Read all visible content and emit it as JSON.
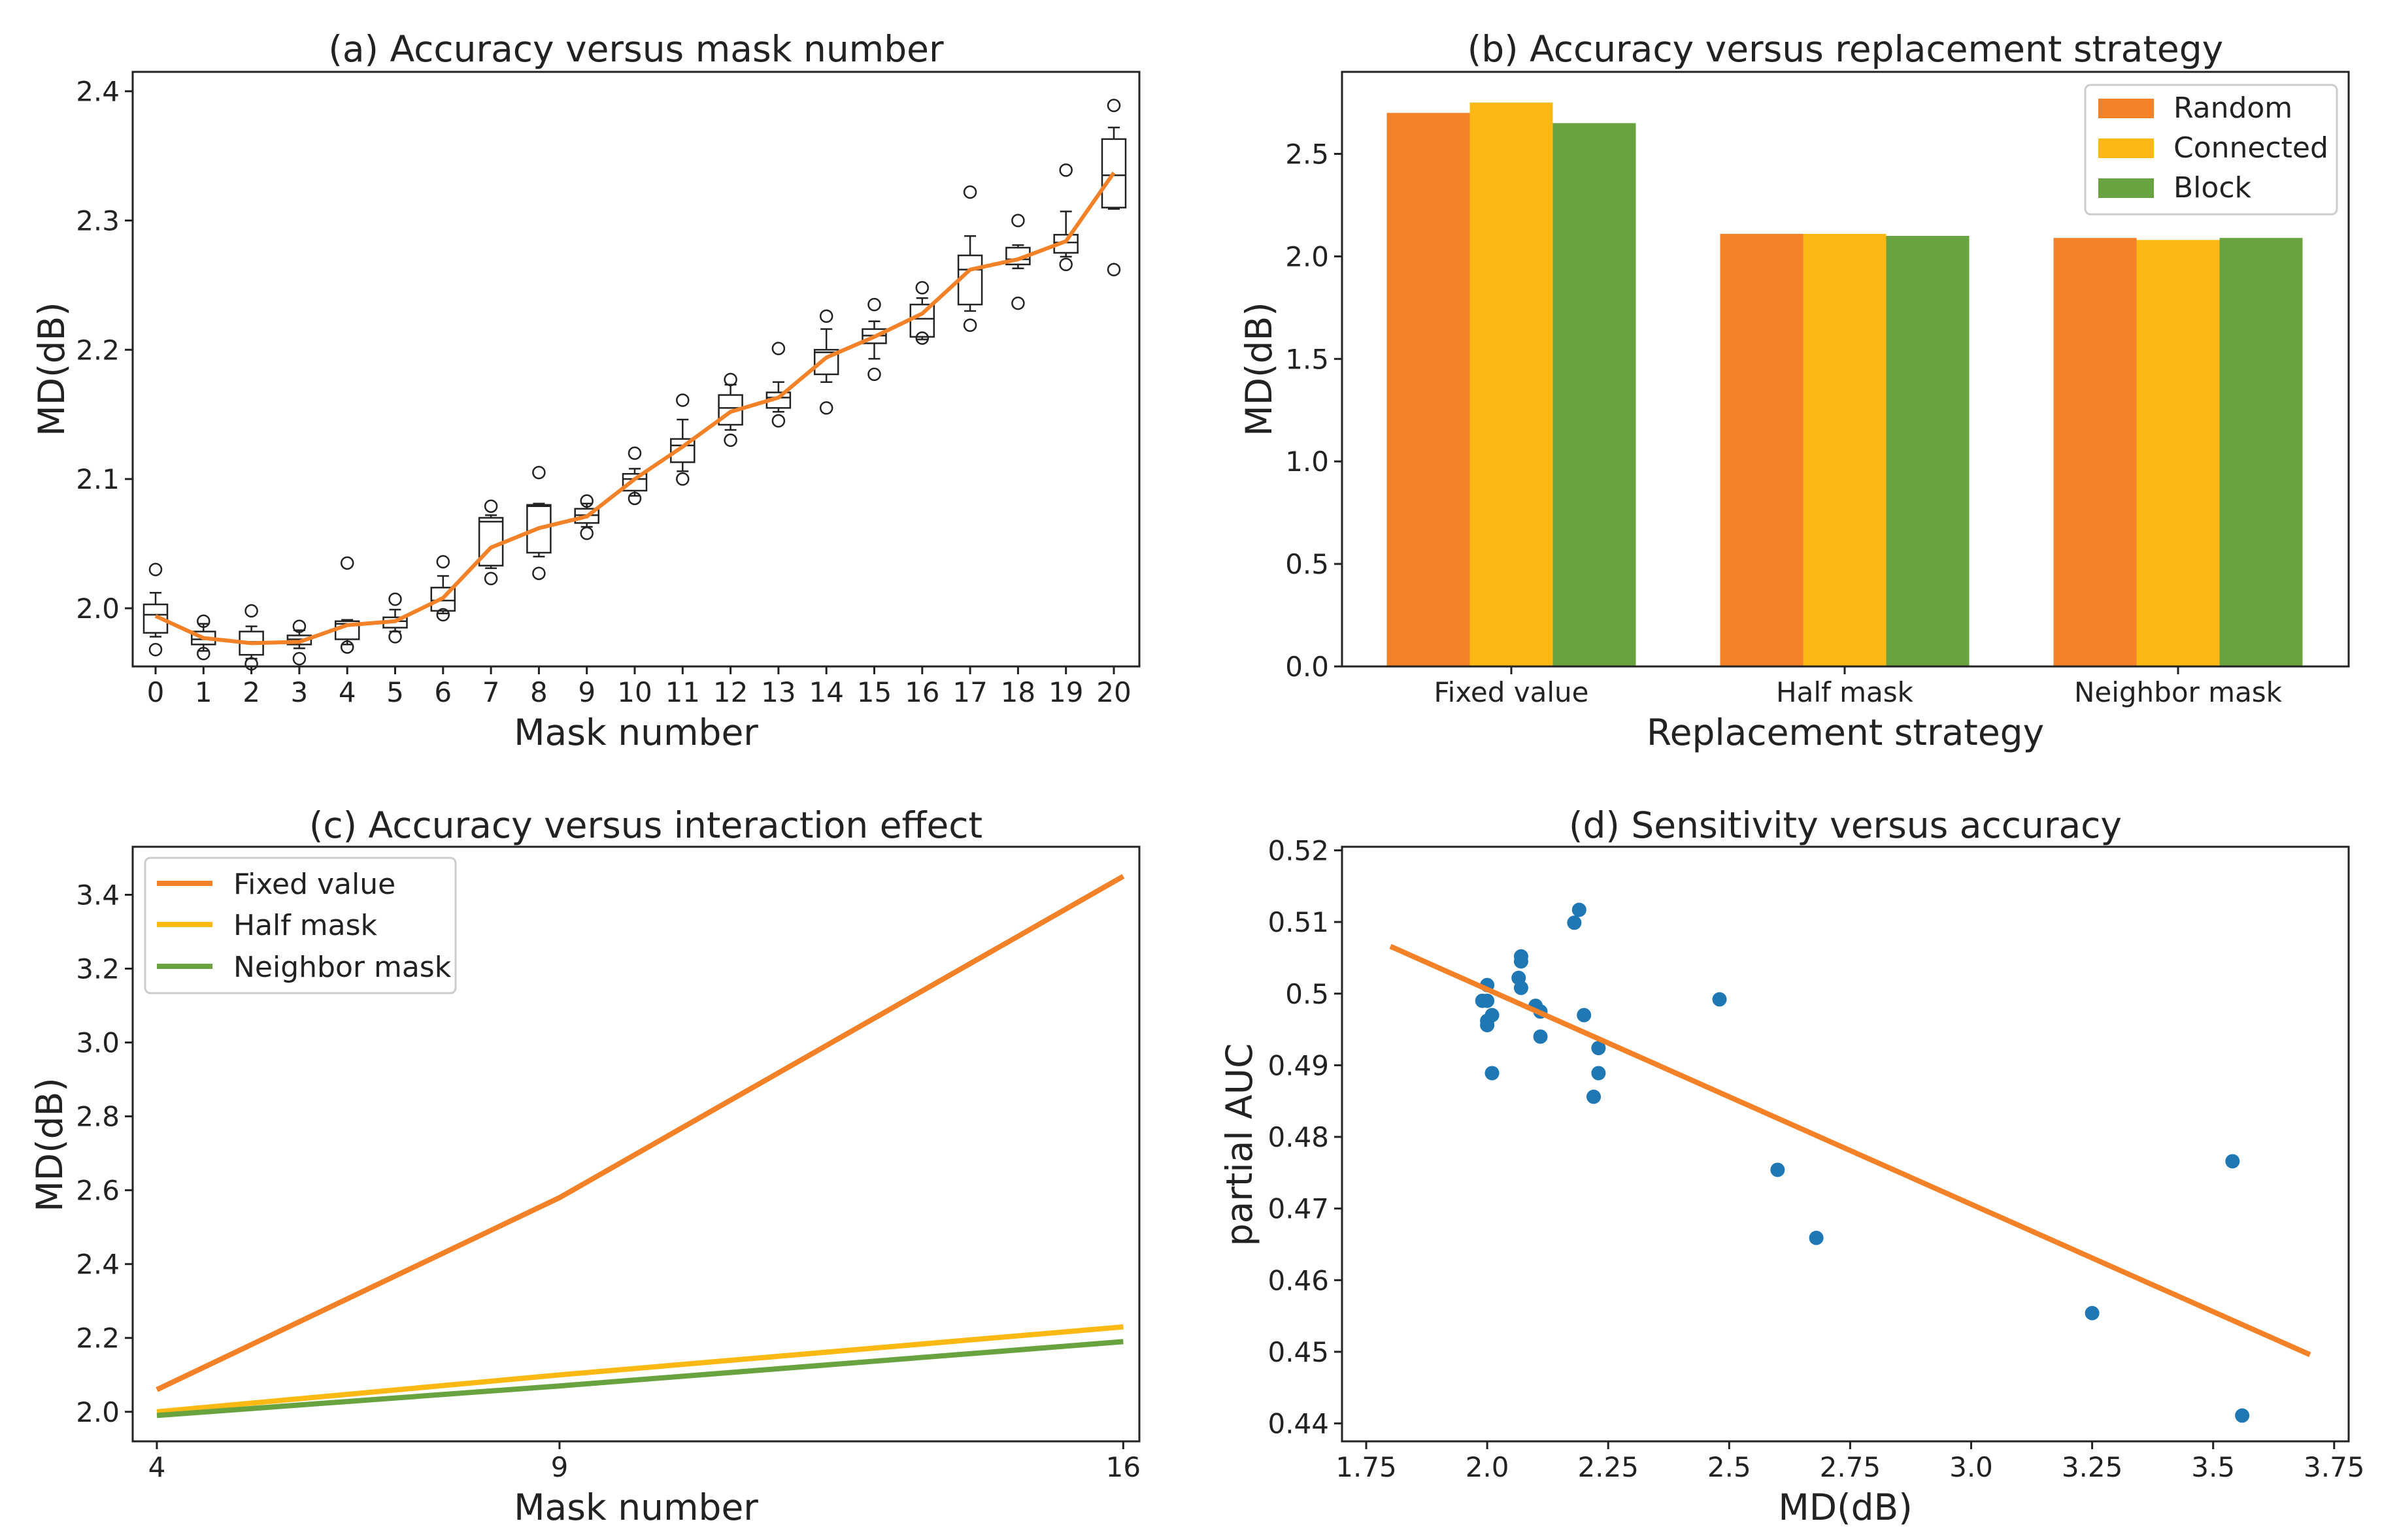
{
  "colors": {
    "orange": "#f28128",
    "yellow": "#fdb913",
    "green": "#68a33f",
    "blue": "#1f77b4",
    "frame": "#222222"
  },
  "chart_data": [
    {
      "id": "a",
      "type": "box",
      "title": "(a) Accuracy versus mask number",
      "xlabel": "Mask number",
      "ylabel": "MD(dB)",
      "ylim": [
        1.955,
        2.415
      ],
      "yticks": [
        2.0,
        2.1,
        2.2,
        2.3,
        2.4
      ],
      "ytick_labels": [
        "2.0",
        "2.1",
        "2.2",
        "2.3",
        "2.4"
      ],
      "categories": [
        "0",
        "1",
        "2",
        "3",
        "4",
        "5",
        "6",
        "7",
        "8",
        "9",
        "10",
        "11",
        "12",
        "13",
        "14",
        "15",
        "16",
        "17",
        "18",
        "19",
        "20"
      ],
      "mean_line": [
        1.994,
        1.977,
        1.973,
        1.974,
        1.987,
        1.99,
        2.008,
        2.047,
        2.062,
        2.071,
        2.1,
        2.125,
        2.152,
        2.163,
        2.194,
        2.21,
        2.228,
        2.262,
        2.27,
        2.284,
        2.337
      ],
      "boxes": [
        {
          "q1": 1.981,
          "median": 1.995,
          "q3": 2.003,
          "wlo": 1.978,
          "whi": 2.012,
          "outliers": [
            1.968,
            2.03
          ]
        },
        {
          "q1": 1.972,
          "median": 1.976,
          "q3": 1.982,
          "wlo": 1.967,
          "whi": 1.988,
          "outliers": [
            1.965,
            1.99
          ]
        },
        {
          "q1": 1.964,
          "median": 1.974,
          "q3": 1.982,
          "wlo": 1.961,
          "whi": 1.986,
          "outliers": [
            1.957,
            1.998
          ]
        },
        {
          "q1": 1.972,
          "median": 1.976,
          "q3": 1.979,
          "wlo": 1.969,
          "whi": 1.983,
          "outliers": [
            1.961,
            1.986
          ]
        },
        {
          "q1": 1.976,
          "median": 1.988,
          "q3": 1.99,
          "wlo": 1.972,
          "whi": 1.991,
          "outliers": [
            1.97,
            2.035
          ]
        },
        {
          "q1": 1.985,
          "median": 1.99,
          "q3": 1.993,
          "wlo": 1.982,
          "whi": 1.999,
          "outliers": [
            1.978,
            2.007
          ]
        },
        {
          "q1": 1.998,
          "median": 2.006,
          "q3": 2.016,
          "wlo": 1.996,
          "whi": 2.025,
          "outliers": [
            1.995,
            2.036
          ]
        },
        {
          "q1": 2.033,
          "median": 2.067,
          "q3": 2.07,
          "wlo": 2.031,
          "whi": 2.072,
          "outliers": [
            2.023,
            2.079
          ]
        },
        {
          "q1": 2.043,
          "median": 2.079,
          "q3": 2.08,
          "wlo": 2.04,
          "whi": 2.081,
          "outliers": [
            2.027,
            2.105
          ]
        },
        {
          "q1": 2.066,
          "median": 2.072,
          "q3": 2.077,
          "wlo": 2.063,
          "whi": 2.081,
          "outliers": [
            2.058,
            2.083
          ]
        },
        {
          "q1": 2.091,
          "median": 2.1,
          "q3": 2.104,
          "wlo": 2.087,
          "whi": 2.108,
          "outliers": [
            2.085,
            2.12
          ]
        },
        {
          "q1": 2.113,
          "median": 2.126,
          "q3": 2.131,
          "wlo": 2.106,
          "whi": 2.146,
          "outliers": [
            2.1,
            2.161
          ]
        },
        {
          "q1": 2.142,
          "median": 2.155,
          "q3": 2.165,
          "wlo": 2.138,
          "whi": 2.173,
          "outliers": [
            2.13,
            2.177
          ]
        },
        {
          "q1": 2.155,
          "median": 2.163,
          "q3": 2.167,
          "wlo": 2.152,
          "whi": 2.175,
          "outliers": [
            2.145,
            2.201
          ]
        },
        {
          "q1": 2.181,
          "median": 2.198,
          "q3": 2.2,
          "wlo": 2.175,
          "whi": 2.216,
          "outliers": [
            2.155,
            2.226
          ]
        },
        {
          "q1": 2.205,
          "median": 2.211,
          "q3": 2.216,
          "wlo": 2.193,
          "whi": 2.222,
          "outliers": [
            2.181,
            2.235
          ]
        },
        {
          "q1": 2.21,
          "median": 2.224,
          "q3": 2.235,
          "wlo": 2.208,
          "whi": 2.24,
          "outliers": [
            2.209,
            2.248
          ]
        },
        {
          "q1": 2.235,
          "median": 2.262,
          "q3": 2.273,
          "wlo": 2.23,
          "whi": 2.288,
          "outliers": [
            2.219,
            2.322
          ]
        },
        {
          "q1": 2.266,
          "median": 2.27,
          "q3": 2.279,
          "wlo": 2.263,
          "whi": 2.281,
          "outliers": [
            2.236,
            2.3
          ]
        },
        {
          "q1": 2.275,
          "median": 2.283,
          "q3": 2.289,
          "wlo": 2.272,
          "whi": 2.307,
          "outliers": [
            2.266,
            2.339
          ]
        },
        {
          "q1": 2.31,
          "median": 2.335,
          "q3": 2.363,
          "wlo": 2.309,
          "whi": 2.372,
          "outliers": [
            2.262,
            2.389
          ]
        }
      ]
    },
    {
      "id": "b",
      "type": "bar",
      "title": "(b) Accuracy versus replacement strategy",
      "xlabel": "Replacement strategy",
      "ylabel": "MD(dB)",
      "ylim": [
        0,
        2.9
      ],
      "yticks": [
        0.0,
        0.5,
        1.0,
        1.5,
        2.0,
        2.5
      ],
      "ytick_labels": [
        "0.0",
        "0.5",
        "1.0",
        "1.5",
        "2.0",
        "2.5"
      ],
      "categories": [
        "Fixed value",
        "Half mask",
        "Neighbor mask"
      ],
      "series": [
        {
          "name": "Random",
          "color": "#f28128",
          "values": [
            2.7,
            2.11,
            2.09
          ]
        },
        {
          "name": "Connected",
          "color": "#fdb913",
          "values": [
            2.75,
            2.11,
            2.08
          ]
        },
        {
          "name": "Block",
          "color": "#68a33f",
          "values": [
            2.65,
            2.1,
            2.09
          ]
        }
      ],
      "legend": "top-right"
    },
    {
      "id": "c",
      "type": "line",
      "title": "(c) Accuracy versus interaction effect",
      "xlabel": "Mask number",
      "ylabel": "MD(dB)",
      "xlim": [
        3.7,
        16.2
      ],
      "ylim": [
        1.92,
        3.53
      ],
      "xticks": [
        4,
        9,
        16
      ],
      "xtick_labels": [
        "4",
        "9",
        "16"
      ],
      "yticks": [
        2.0,
        2.2,
        2.4,
        2.6,
        2.8,
        3.0,
        3.2,
        3.4
      ],
      "ytick_labels": [
        "2.0",
        "2.2",
        "2.4",
        "2.6",
        "2.8",
        "3.0",
        "3.2",
        "3.4"
      ],
      "x": [
        4,
        9,
        16
      ],
      "series": [
        {
          "name": "Fixed value",
          "color": "#f28128",
          "values": [
            2.06,
            2.58,
            3.45
          ]
        },
        {
          "name": "Half mask",
          "color": "#fdb913",
          "values": [
            2.0,
            2.1,
            2.23
          ]
        },
        {
          "name": "Neighbor mask",
          "color": "#68a33f",
          "values": [
            1.99,
            2.07,
            2.19
          ]
        }
      ],
      "legend": "top-left"
    },
    {
      "id": "d",
      "type": "scatter",
      "title": "(d) Sensitivity versus accuracy",
      "xlabel": "MD(dB)",
      "ylabel": "partial AUC",
      "xlim": [
        1.7,
        3.78
      ],
      "ylim": [
        0.4375,
        0.5205
      ],
      "xticks": [
        1.75,
        2.0,
        2.25,
        2.5,
        2.75,
        3.0,
        3.25,
        3.5,
        3.75
      ],
      "xtick_labels": [
        "1.75",
        "2.0",
        "2.25",
        "2.5",
        "2.75",
        "3.0",
        "3.25",
        "3.5",
        "3.75"
      ],
      "yticks": [
        0.44,
        0.45,
        0.46,
        0.47,
        0.48,
        0.49,
        0.5,
        0.51,
        0.52
      ],
      "ytick_labels": [
        "0.44",
        "0.45",
        "0.46",
        "0.47",
        "0.48",
        "0.49",
        "0.5",
        "0.51",
        "0.52"
      ],
      "points": [
        [
          1.99,
          0.499
        ],
        [
          2.0,
          0.499
        ],
        [
          2.0,
          0.5012
        ],
        [
          2.0,
          0.4962
        ],
        [
          2.0,
          0.4956
        ],
        [
          2.01,
          0.497
        ],
        [
          2.01,
          0.4889
        ],
        [
          2.07,
          0.5052
        ],
        [
          2.07,
          0.5045
        ],
        [
          2.065,
          0.5022
        ],
        [
          2.07,
          0.5008
        ],
        [
          2.1,
          0.4983
        ],
        [
          2.11,
          0.4975
        ],
        [
          2.11,
          0.494
        ],
        [
          2.18,
          0.5099
        ],
        [
          2.19,
          0.5117
        ],
        [
          2.2,
          0.497
        ],
        [
          2.22,
          0.4856
        ],
        [
          2.23,
          0.4924
        ],
        [
          2.23,
          0.4889
        ],
        [
          2.48,
          0.4992
        ],
        [
          2.6,
          0.4754
        ],
        [
          2.68,
          0.4659
        ],
        [
          3.25,
          0.4554
        ],
        [
          3.54,
          0.4766
        ],
        [
          3.56,
          0.4411
        ]
      ],
      "fit_line": [
        [
          1.8,
          0.5066
        ],
        [
          3.7,
          0.4496
        ]
      ]
    }
  ]
}
